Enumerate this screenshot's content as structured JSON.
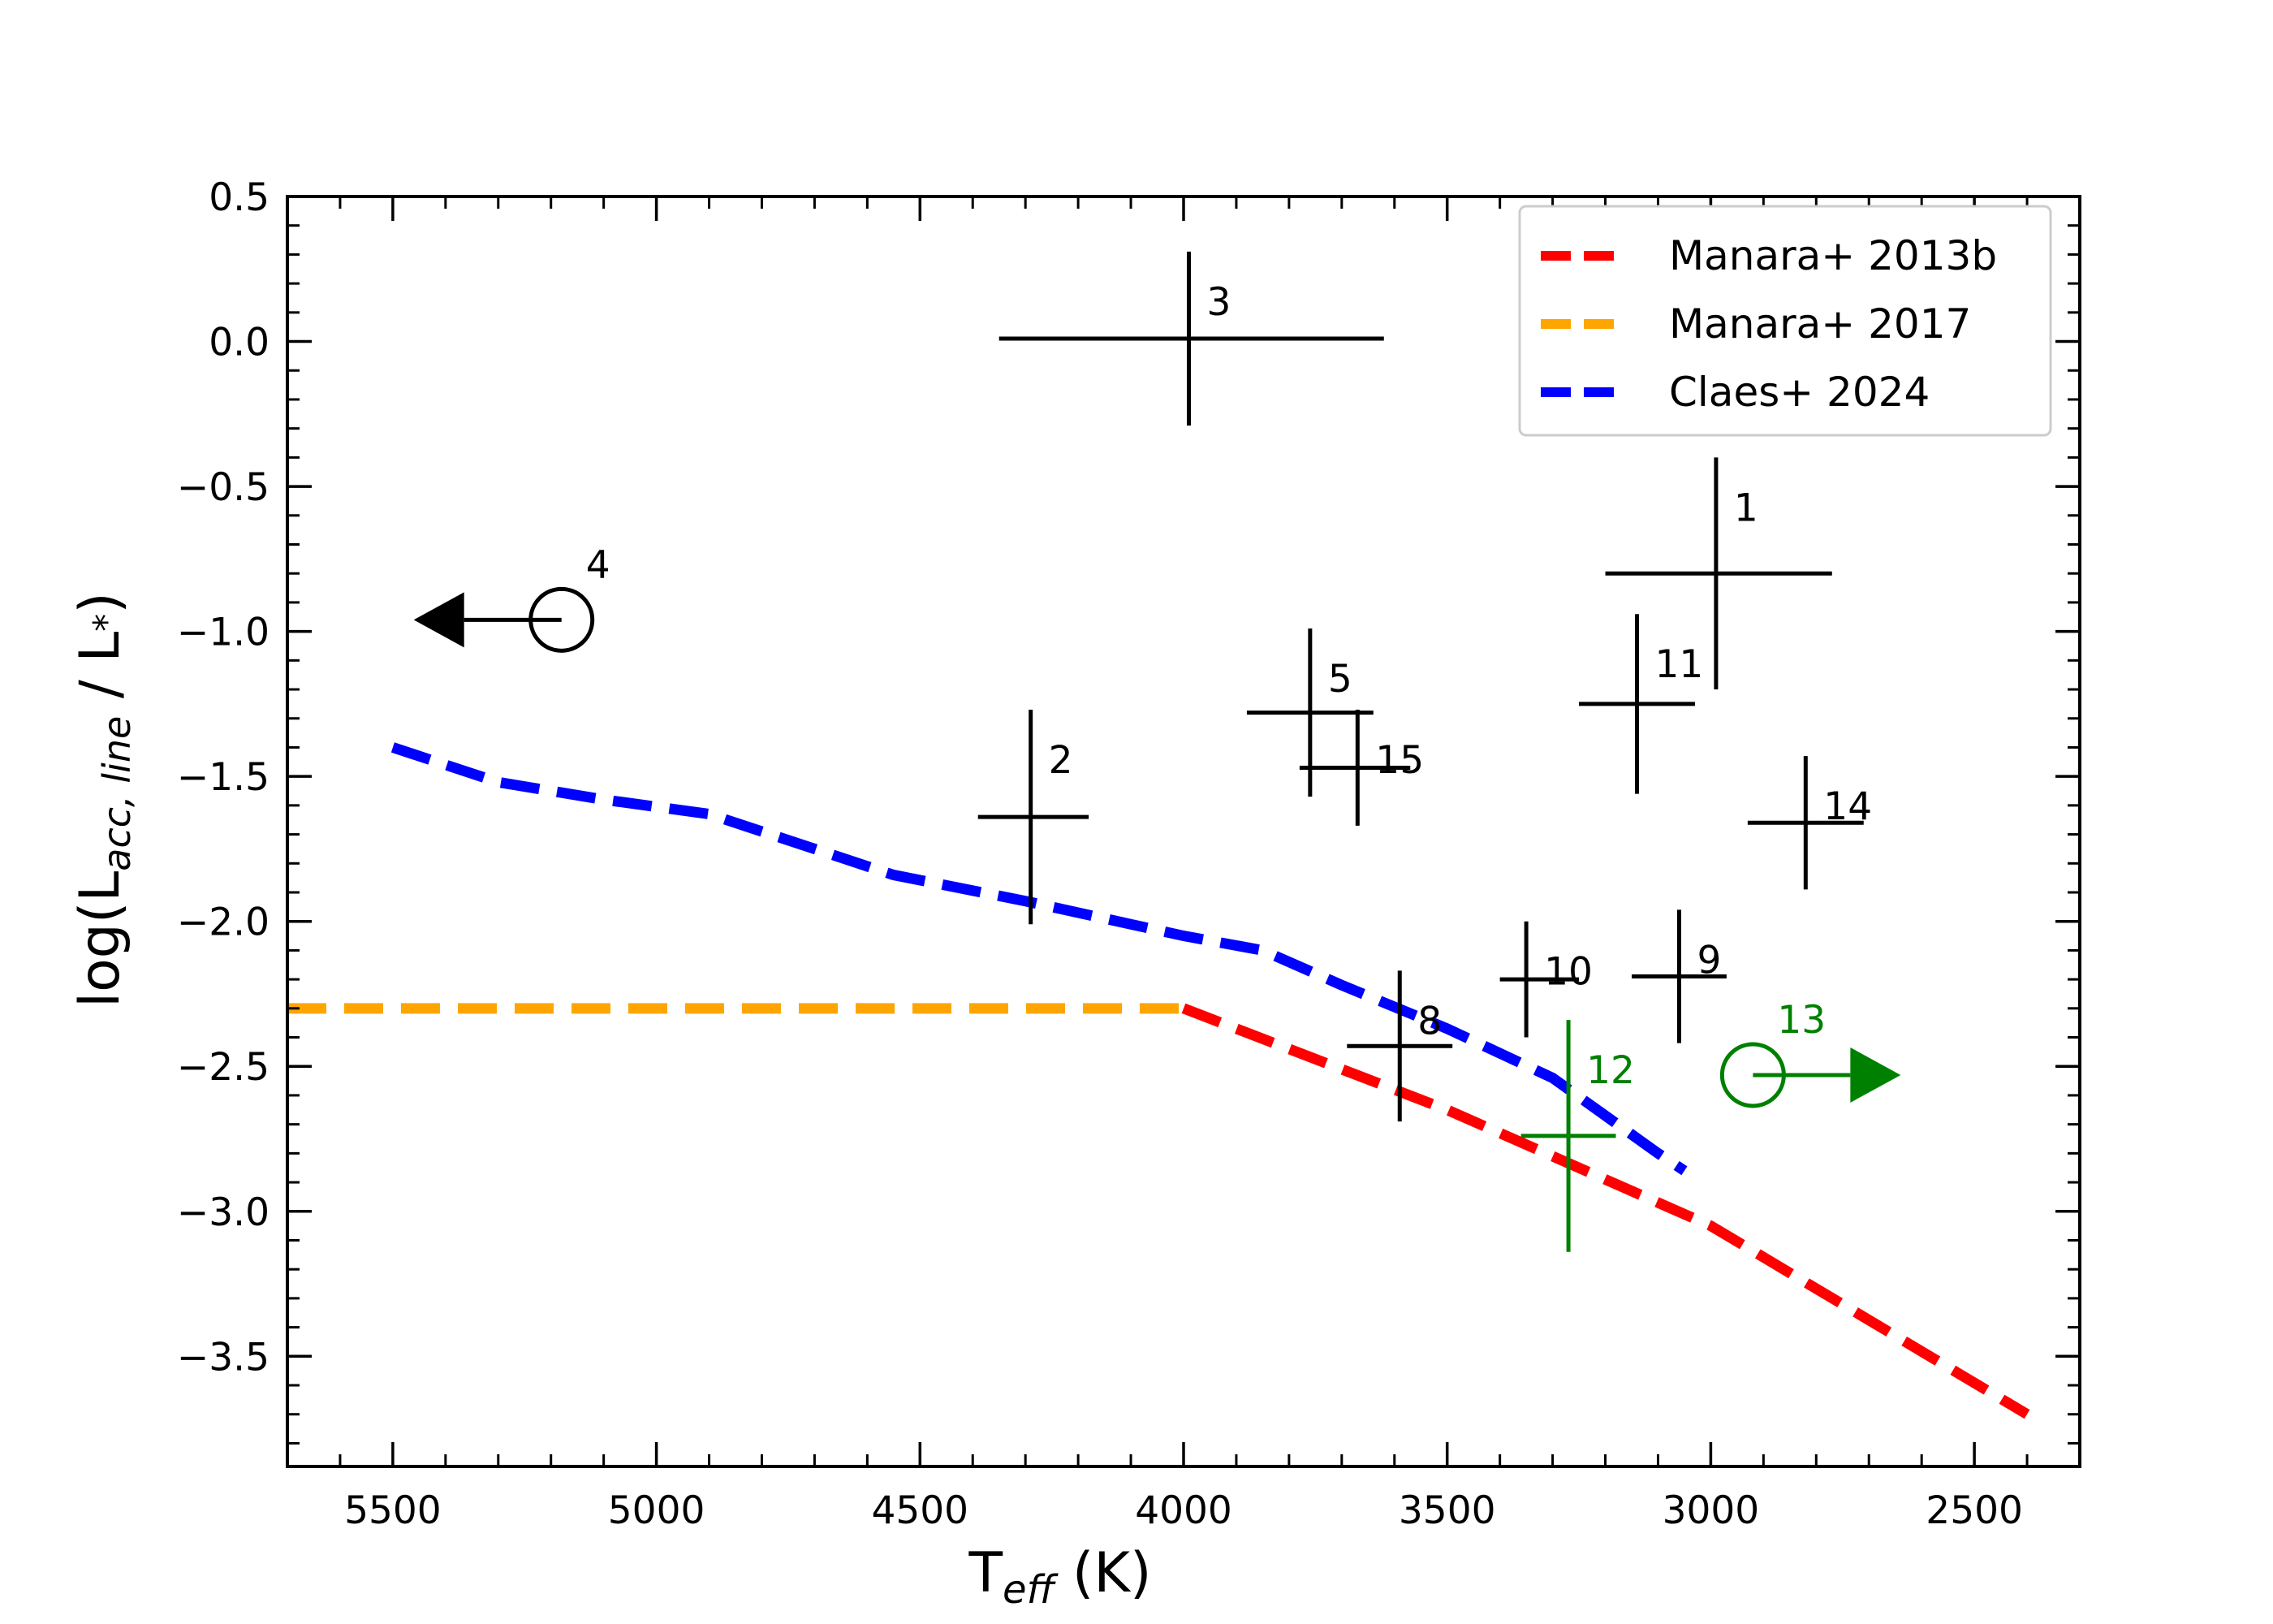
{
  "chart_data": {
    "type": "scatter",
    "title": "",
    "xlabel": {
      "main": "T",
      "sub": "eff",
      "unit": " (K)"
    },
    "ylabel": {
      "prefix": "log(L",
      "sub": "acc, line",
      "mid": " / L",
      "star": "*",
      "suffix": ")"
    },
    "xlim": [
      5700,
      2300
    ],
    "ylim": [
      -3.88,
      0.5
    ],
    "xticks": [
      5500,
      5000,
      4500,
      4000,
      3500,
      3000,
      2500
    ],
    "xtick_labels": [
      "5500",
      "5000",
      "4500",
      "4000",
      "3500",
      "3000",
      "2500"
    ],
    "yticks": [
      0.5,
      0.0,
      -0.5,
      -1.0,
      -1.5,
      -2.0,
      -2.5,
      -3.0,
      -3.5
    ],
    "ytick_labels": [
      "0.5",
      "0.0",
      "−0.5",
      "−1.0",
      "−1.5",
      "−2.0",
      "−2.5",
      "−3.0",
      "−3.5"
    ],
    "grid": false,
    "legend": {
      "position": "top-right",
      "entries": [
        {
          "label": "Manara+ 2013b",
          "color": "#ff0000"
        },
        {
          "label": "Manara+ 2017",
          "color": "#ffa500"
        },
        {
          "label": "Claes+ 2024",
          "color": "#0000ff"
        }
      ]
    },
    "series": [
      {
        "name": "Manara+ 2013b",
        "style": "dashed",
        "color": "#ff0000",
        "x": [
          4000,
          3500,
          3000,
          2400
        ],
        "y": [
          -2.3,
          -2.65,
          -3.05,
          -3.7
        ]
      },
      {
        "name": "Manara+ 2017",
        "style": "dashed",
        "color": "#ffa500",
        "x": [
          5700,
          4000
        ],
        "y": [
          -2.3,
          -2.3
        ]
      },
      {
        "name": "Claes+ 2024",
        "style": "dashed",
        "color": "#0000ff",
        "x": [
          5500,
          5300,
          5100,
          4900,
          4700,
          4550,
          4300,
          4000,
          3850,
          3700,
          3500,
          3300,
          3200,
          3100,
          3050
        ],
        "y": [
          -1.4,
          -1.52,
          -1.58,
          -1.63,
          -1.75,
          -1.84,
          -1.93,
          -2.05,
          -2.1,
          -2.22,
          -2.37,
          -2.54,
          -2.67,
          -2.8,
          -2.86
        ]
      }
    ],
    "points": [
      {
        "label": "1",
        "x": 2990,
        "y": -0.8,
        "xerr": [
          210,
          220
        ],
        "yerr": [
          0.4,
          0.4
        ],
        "color": "#000000"
      },
      {
        "label": "2",
        "x": 4290,
        "y": -1.64,
        "xerr": [
          100,
          110
        ],
        "yerr": [
          0.37,
          0.37
        ],
        "color": "#000000"
      },
      {
        "label": "3",
        "x": 3990,
        "y": 0.01,
        "xerr": [
          360,
          370
        ],
        "yerr": [
          0.3,
          0.3
        ],
        "color": "#000000"
      },
      {
        "label": "5",
        "x": 3760,
        "y": -1.28,
        "xerr": [
          120,
          120
        ],
        "yerr": [
          0.29,
          0.29
        ],
        "color": "#000000"
      },
      {
        "label": "15",
        "x": 3670,
        "y": -1.47,
        "xerr": [
          110,
          100
        ],
        "yerr": [
          0.2,
          0.2
        ],
        "color": "#000000"
      },
      {
        "label": "11",
        "x": 3140,
        "y": -1.25,
        "xerr": [
          110,
          110
        ],
        "yerr": [
          0.31,
          0.31
        ],
        "color": "#000000"
      },
      {
        "label": "14",
        "x": 2820,
        "y": -1.66,
        "xerr": [
          110,
          110
        ],
        "yerr": [
          0.23,
          0.23
        ],
        "color": "#000000"
      },
      {
        "label": "10",
        "x": 3350,
        "y": -2.2,
        "xerr": [
          50,
          100
        ],
        "yerr": [
          0.2,
          0.2
        ],
        "color": "#000000"
      },
      {
        "label": "9",
        "x": 3060,
        "y": -2.19,
        "xerr": [
          90,
          90
        ],
        "yerr": [
          0.23,
          0.23
        ],
        "color": "#000000"
      },
      {
        "label": "8",
        "x": 3590,
        "y": -2.43,
        "xerr": [
          100,
          100
        ],
        "yerr": [
          0.26,
          0.26
        ],
        "color": "#000000"
      },
      {
        "label": "12",
        "x": 3270,
        "y": -2.74,
        "xerr": [
          90,
          90
        ],
        "yerr": [
          0.4,
          0.4
        ],
        "color": "#008000"
      }
    ],
    "limits": [
      {
        "label": "4",
        "x": 5180,
        "y": -0.96,
        "direction": "left",
        "color": "#000000"
      },
      {
        "label": "13",
        "x": 2920,
        "y": -2.53,
        "direction": "right",
        "color": "#008000"
      }
    ]
  }
}
